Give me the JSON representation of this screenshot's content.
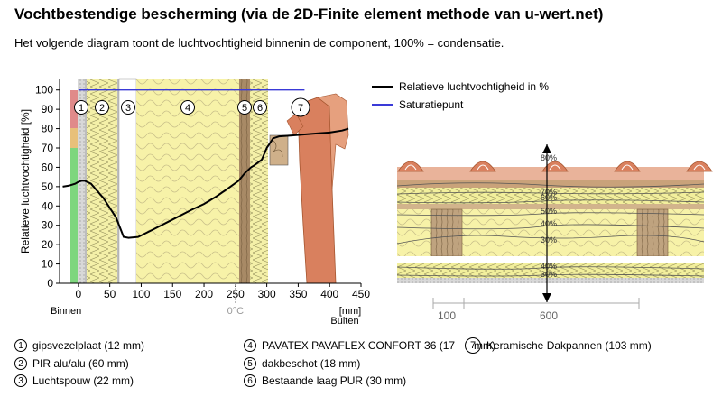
{
  "header": {
    "title": "Vochtbestendige bescherming (via de 2D-Finite element methode van u-wert.net)",
    "subtitle": "Het volgende diagram toont de luchtvochtigheid binnenin de component, 100% = condensatie."
  },
  "chart_data": [
    {
      "type": "line",
      "ylabel": "Relatieve luchtvochtigheid [%]",
      "xlabel": "[mm]",
      "x_ticks": [
        "0",
        "50",
        "100",
        "150",
        "200",
        "250",
        "300",
        "350",
        "400",
        "450"
      ],
      "y_ticks": [
        "0",
        "10",
        "20",
        "30",
        "40",
        "50",
        "60",
        "70",
        "80",
        "90",
        "100"
      ],
      "xlim": [
        -30,
        450
      ],
      "ylim": [
        0,
        105
      ],
      "inside_label": "Binnen",
      "outside_label": "Buiten",
      "freeze_label": "0°C",
      "freeze_x": 250,
      "legend": [
        {
          "label": "Relatieve luchtvochtigheid in %",
          "color": "#000000"
        },
        {
          "label": "Saturatiepunt",
          "color": "#3a3ad8"
        }
      ],
      "layer_numbers": [
        "1",
        "2",
        "3",
        "4",
        "5",
        "6",
        "7"
      ],
      "series": [
        {
          "name": "Relatieve luchtvochtigheid in %",
          "color": "#000000",
          "x": [
            -25,
            -15,
            -5,
            0,
            5,
            10,
            20,
            40,
            60,
            72,
            80,
            95,
            120,
            150,
            180,
            200,
            220,
            240,
            255,
            265,
            275,
            280,
            292,
            300,
            310,
            320,
            340,
            360,
            380,
            400,
            420,
            430
          ],
          "y": [
            50,
            50.5,
            51.5,
            52.5,
            53,
            53,
            51.5,
            44,
            34,
            24,
            23.5,
            24,
            28,
            33,
            38,
            41,
            45,
            49.5,
            53,
            57,
            60,
            61,
            64,
            70,
            75,
            76,
            76.5,
            77,
            77.5,
            78,
            79,
            80
          ]
        },
        {
          "name": "Saturatiepunt",
          "color": "#3a3ad8",
          "x": [
            0,
            360
          ],
          "y": [
            100,
            100
          ]
        }
      ]
    },
    {
      "type": "heatmap",
      "isoline_labels": [
        "80%",
        "70%",
        "60%",
        "50%",
        "40%",
        "30%",
        "40%",
        "30%"
      ],
      "dimension_labels": [
        "100",
        "600"
      ]
    }
  ],
  "layers_legend": [
    {
      "num": "1",
      "text": "gipsvezelplaat (12 mm)"
    },
    {
      "num": "2",
      "text": "PIR alu/alu (60 mm)"
    },
    {
      "num": "3",
      "text": "Luchtspouw (22 mm)"
    },
    {
      "num": "4",
      "text": "PAVATEX PAVAFLEX CONFORT 36 (17"
    },
    {
      "num": "5",
      "text": "dakbeschot (18 mm)"
    },
    {
      "num": "6",
      "text": "Bestaande laag PUR (30 mm)"
    },
    {
      "num": "7",
      "text": "Keramische Dakpannen (103 mm)"
    }
  ],
  "layers_legend_overlap_fragment": "mm)"
}
